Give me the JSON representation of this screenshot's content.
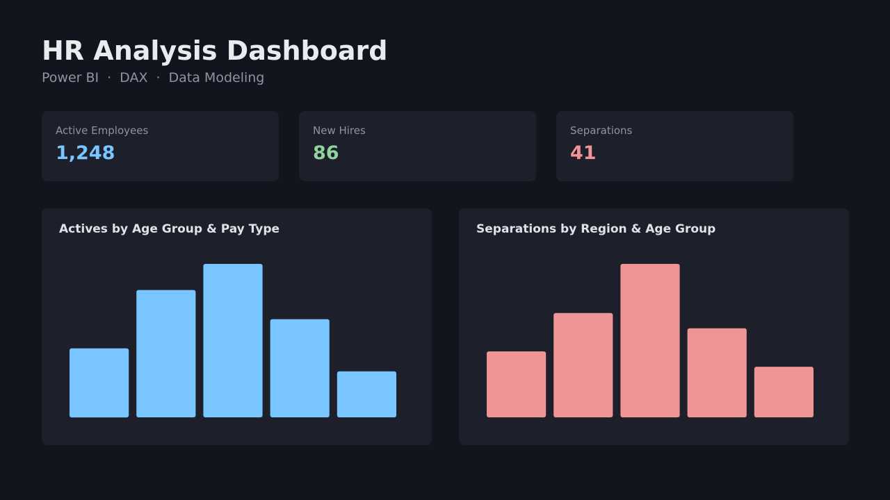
{
  "header": {
    "title": "HR Analysis Dashboard",
    "subtitle_items": [
      "Power BI",
      "DAX",
      "Data Modeling"
    ],
    "subtitle_separator": "·"
  },
  "kpis": [
    {
      "label": "Active Employees",
      "value": "1,248",
      "color": "#79c5ff"
    },
    {
      "label": "New Hires",
      "value": "86",
      "color": "#8fd49a"
    },
    {
      "label": "Separations",
      "value": "41",
      "color": "#ef9596"
    }
  ],
  "panels": [
    {
      "title": "Actives by Age Group & Pay Type"
    },
    {
      "title": "Separations by Region & Age Group"
    }
  ],
  "chart_data": [
    {
      "type": "bar",
      "title": "Actives by Age Group & Pay Type",
      "values": [
        45,
        83,
        100,
        64,
        30
      ],
      "ylim": [
        0,
        100
      ],
      "color": "#79c5ff",
      "grid": false,
      "axes_labels_shown": false
    },
    {
      "type": "bar",
      "title": "Separations by Region & Age Group",
      "values": [
        43,
        68,
        100,
        58,
        33
      ],
      "ylim": [
        0,
        100
      ],
      "color": "#ef9596",
      "grid": false,
      "axes_labels_shown": false
    }
  ]
}
